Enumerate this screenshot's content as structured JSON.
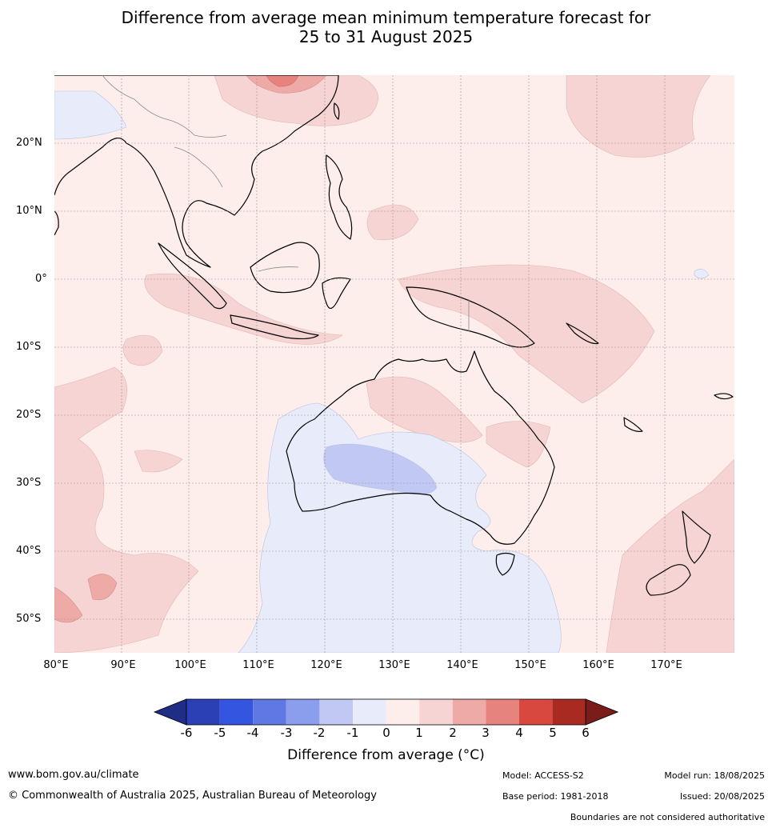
{
  "title_line1": "Difference from average mean minimum temperature forecast for",
  "title_line2": "25 to 31 August 2025",
  "lat_labels": [
    "20°N",
    "10°N",
    "0°",
    "10°S",
    "20°S",
    "30°S",
    "40°S",
    "50°S"
  ],
  "lon_labels": [
    "80°E",
    "90°E",
    "100°E",
    "110°E",
    "120°E",
    "130°E",
    "140°E",
    "150°E",
    "160°E",
    "170°E"
  ],
  "colorbar": {
    "ticks": [
      "-6",
      "-5",
      "-4",
      "-3",
      "-2",
      "-1",
      "0",
      "1",
      "2",
      "3",
      "4",
      "5",
      "6"
    ],
    "colors": [
      "#1f2d86",
      "#2a40b4",
      "#3355e0",
      "#5f78e4",
      "#8b9ded",
      "#c0c8f3",
      "#e8ecfa",
      "#fdeeec",
      "#f5d4d3",
      "#edaaa6",
      "#e6837e",
      "#d8483f",
      "#a82a20",
      "#7a1c18"
    ],
    "label": "Difference from average (°C)"
  },
  "map_colors": {
    "ocean_base": "#fdeeec",
    "band_light_red": "#f5d4d3",
    "band_mid_red": "#edaaa6",
    "band_red": "#e6837e",
    "band_light_blue": "#e8ecfa",
    "band_blue": "#c0c8f3",
    "coastline": "#000000",
    "border": "#888888",
    "gridline": "#a09090"
  },
  "footer": {
    "website": "www.bom.gov.au/climate",
    "copyright": "© Commonwealth of Australia 2025, Australian Bureau of Meteorology",
    "model": "Model: ACCESS-S2",
    "base_period": "Base period: 1981-2018",
    "model_run": "Model run: 18/08/2025",
    "issued": "Issued: 20/08/2025",
    "disclaimer": "Boundaries are not considered authoritative"
  }
}
